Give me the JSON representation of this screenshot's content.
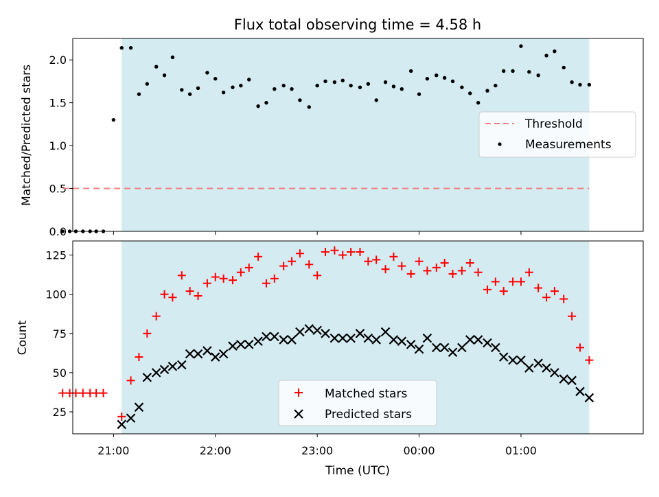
{
  "chart_data": [
    {
      "type": "scatter",
      "title": "Flux total observing time = 4.58 h",
      "xlabel": "",
      "ylabel": "Matched/Predicted stars",
      "ylim": [
        0,
        2.25
      ],
      "yticks": [
        "0.0",
        "0.5",
        "1.0",
        "1.5",
        "2.0"
      ],
      "ytick_values": [
        0,
        0.5,
        1.0,
        1.5,
        2.0
      ],
      "xlim": [
        20.6,
        26.2
      ],
      "xticks": [
        21,
        22,
        23,
        24,
        25
      ],
      "shaded_span": [
        21.08,
        25.67
      ],
      "grid": false,
      "legend_position": "center-right",
      "colors": {
        "shade": "#add8e6",
        "threshold": "#f08080",
        "measurements": "#000000"
      },
      "threshold": {
        "name": "Threshold",
        "y": 0.5,
        "x_range": [
          20.5,
          25.67
        ]
      },
      "series": [
        {
          "name": "Measurements",
          "x": [
            20.5,
            20.57,
            20.63,
            20.7,
            20.77,
            20.83,
            20.9,
            21.0,
            21.08,
            21.17,
            21.25,
            21.33,
            21.42,
            21.5,
            21.58,
            21.67,
            21.75,
            21.83,
            21.92,
            22.0,
            22.08,
            22.17,
            22.25,
            22.33,
            22.42,
            22.5,
            22.58,
            22.67,
            22.75,
            22.83,
            22.92,
            23.0,
            23.08,
            23.17,
            23.25,
            23.33,
            23.42,
            23.5,
            23.58,
            23.67,
            23.75,
            23.83,
            23.92,
            24.0,
            24.08,
            24.17,
            24.25,
            24.33,
            24.42,
            24.5,
            24.58,
            24.67,
            24.75,
            24.83,
            24.92,
            25.0,
            25.08,
            25.17,
            25.25,
            25.33,
            25.42,
            25.5,
            25.58,
            25.67
          ],
          "y": [
            0,
            0,
            0,
            0,
            0,
            0,
            0,
            1.3,
            2.14,
            2.14,
            1.6,
            1.72,
            1.92,
            1.82,
            2.03,
            1.65,
            1.6,
            1.67,
            1.85,
            1.78,
            1.62,
            1.68,
            1.7,
            1.77,
            1.46,
            1.5,
            1.66,
            1.7,
            1.66,
            1.53,
            1.45,
            1.7,
            1.75,
            1.74,
            1.76,
            1.7,
            1.68,
            1.72,
            1.53,
            1.74,
            1.69,
            1.66,
            1.87,
            1.6,
            1.78,
            1.82,
            1.79,
            1.75,
            1.68,
            1.61,
            1.5,
            1.64,
            1.7,
            1.87,
            1.87,
            2.16,
            1.86,
            1.82,
            2.05,
            2.1,
            1.91,
            1.74,
            1.71,
            1.71
          ]
        }
      ]
    },
    {
      "type": "scatter",
      "title": "",
      "xlabel": "Time (UTC)",
      "ylabel": "Count",
      "ylim": [
        11,
        134
      ],
      "yticks": [
        "25",
        "50",
        "75",
        "100",
        "125"
      ],
      "ytick_values": [
        25,
        50,
        75,
        100,
        125
      ],
      "xlim": [
        20.6,
        26.2
      ],
      "xticks": [
        "21:00",
        "22:00",
        "23:00",
        "00:00",
        "01:00"
      ],
      "xtick_values": [
        21,
        22,
        23,
        24,
        25
      ],
      "shaded_span": [
        21.08,
        25.67
      ],
      "grid": false,
      "legend_position": "bottom-center",
      "colors": {
        "shade": "#add8e6",
        "matched": "#ff0000",
        "predicted": "#000000"
      },
      "series": [
        {
          "name": "Matched stars",
          "x": [
            20.5,
            20.57,
            20.63,
            20.7,
            20.77,
            20.83,
            20.9,
            21.08,
            21.17,
            21.25,
            21.33,
            21.42,
            21.5,
            21.58,
            21.67,
            21.75,
            21.83,
            21.92,
            22.0,
            22.08,
            22.17,
            22.25,
            22.33,
            22.42,
            22.5,
            22.58,
            22.67,
            22.75,
            22.83,
            22.92,
            23.0,
            23.08,
            23.17,
            23.25,
            23.33,
            23.42,
            23.5,
            23.58,
            23.67,
            23.75,
            23.83,
            23.92,
            24.0,
            24.08,
            24.17,
            24.25,
            24.33,
            24.42,
            24.5,
            24.58,
            24.67,
            24.75,
            24.83,
            24.92,
            25.0,
            25.08,
            25.17,
            25.25,
            25.33,
            25.42,
            25.5,
            25.58,
            25.67
          ],
          "y": [
            37,
            37,
            37,
            37,
            37,
            37,
            37,
            22,
            45,
            60,
            75,
            86,
            100,
            98,
            112,
            102,
            99,
            107,
            111,
            110,
            109,
            114,
            117,
            124,
            107,
            110,
            118,
            121,
            126,
            119,
            112,
            127,
            128,
            125,
            127,
            127,
            121,
            122,
            116,
            124,
            118,
            113,
            121,
            115,
            117,
            120,
            113,
            115,
            120,
            114,
            103,
            108,
            102,
            108,
            108,
            114,
            104,
            98,
            102,
            97,
            86,
            66,
            58
          ]
        },
        {
          "name": "Predicted stars",
          "x": [
            21.08,
            21.17,
            21.25,
            21.33,
            21.42,
            21.5,
            21.58,
            21.67,
            21.75,
            21.83,
            21.92,
            22.0,
            22.08,
            22.17,
            22.25,
            22.33,
            22.42,
            22.5,
            22.58,
            22.67,
            22.75,
            22.83,
            22.92,
            23.0,
            23.08,
            23.17,
            23.25,
            23.33,
            23.42,
            23.5,
            23.58,
            23.67,
            23.75,
            23.83,
            23.92,
            24.0,
            24.08,
            24.17,
            24.25,
            24.33,
            24.42,
            24.5,
            24.58,
            24.67,
            24.75,
            24.83,
            24.92,
            25.0,
            25.08,
            25.17,
            25.25,
            25.33,
            25.42,
            25.5,
            25.58,
            25.67
          ],
          "y": [
            17,
            21,
            28,
            47,
            50,
            52,
            54,
            55,
            62,
            62,
            64,
            60,
            62,
            67,
            68,
            68,
            70,
            73,
            73,
            71,
            71,
            76,
            78,
            77,
            75,
            72,
            72,
            72,
            75,
            72,
            71,
            76,
            71,
            70,
            68,
            65,
            72,
            66,
            66,
            63,
            66,
            71,
            71,
            69,
            66,
            60,
            58,
            58,
            53,
            56,
            53,
            50,
            46,
            45,
            38,
            34
          ]
        }
      ]
    }
  ]
}
